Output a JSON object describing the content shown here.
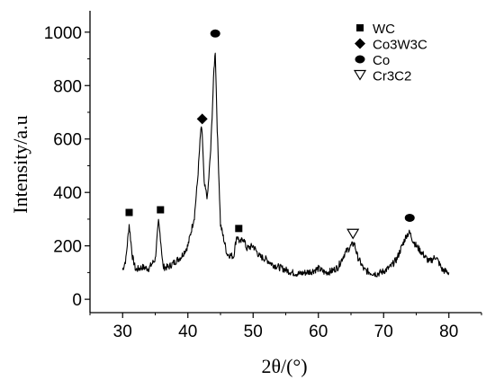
{
  "chart_data": {
    "type": "line",
    "title": "",
    "xlabel": "2θ/(°)",
    "ylabel": "Intensity/a.u",
    "xlim": [
      25,
      85
    ],
    "ylim": [
      -50,
      1080
    ],
    "x_ticks": [
      "30",
      "40",
      "50",
      "60",
      "70",
      "80"
    ],
    "y_ticks": [
      "0",
      "200",
      "400",
      "600",
      "800",
      "1000"
    ],
    "x_tick_values": [
      30,
      40,
      50,
      60,
      70,
      80
    ],
    "y_tick_values": [
      0,
      200,
      400,
      600,
      800,
      1000
    ],
    "grid": false,
    "legend_position": "top-right",
    "legend": [
      {
        "label": "WC",
        "marker": "square"
      },
      {
        "label": "Co3W3C",
        "marker": "diamond"
      },
      {
        "label": "Co",
        "marker": "circle"
      },
      {
        "label": "Cr3C2",
        "marker": "triangle-down-open"
      }
    ],
    "series": [
      {
        "color": "#000000",
        "x": [
          30.0,
          30.5,
          31.0,
          31.5,
          32.0,
          33.0,
          34.0,
          35.0,
          35.5,
          35.8,
          36.2,
          37.0,
          38.0,
          39.0,
          40.0,
          41.0,
          41.5,
          42.0,
          42.2,
          42.5,
          43.0,
          43.5,
          44.0,
          44.2,
          44.5,
          45.0,
          46.0,
          47.0,
          47.5,
          48.0,
          48.5,
          49.0,
          50.0,
          51.0,
          52.0,
          53.0,
          54.0,
          55.0,
          56.0,
          57.0,
          58.0,
          59.0,
          60.0,
          61.0,
          62.0,
          63.0,
          64.0,
          65.0,
          65.5,
          66.0,
          67.0,
          68.0,
          69.0,
          70.0,
          71.0,
          72.0,
          73.0,
          73.5,
          74.0,
          74.5,
          75.0,
          76.0,
          77.0,
          78.0,
          79.0,
          80.0
        ],
        "y": [
          110,
          150,
          280,
          160,
          110,
          120,
          115,
          150,
          290,
          230,
          120,
          120,
          140,
          160,
          200,
          310,
          450,
          640,
          620,
          430,
          380,
          560,
          860,
          930,
          640,
          280,
          170,
          160,
          240,
          210,
          230,
          190,
          200,
          160,
          150,
          130,
          120,
          110,
          100,
          95,
          100,
          105,
          115,
          100,
          105,
          120,
          170,
          200,
          210,
          160,
          110,
          100,
          95,
          105,
          120,
          150,
          210,
          240,
          250,
          220,
          200,
          170,
          140,
          160,
          110,
          100
        ]
      }
    ],
    "annotations": [
      {
        "marker": "square",
        "x": 31.0,
        "y": 325
      },
      {
        "marker": "square",
        "x": 35.8,
        "y": 335
      },
      {
        "marker": "diamond",
        "x": 42.2,
        "y": 675
      },
      {
        "marker": "circle",
        "x": 44.2,
        "y": 995
      },
      {
        "marker": "square",
        "x": 47.8,
        "y": 265
      },
      {
        "marker": "triangle-down-open",
        "x": 65.3,
        "y": 245
      },
      {
        "marker": "circle",
        "x": 74.0,
        "y": 305
      }
    ]
  }
}
